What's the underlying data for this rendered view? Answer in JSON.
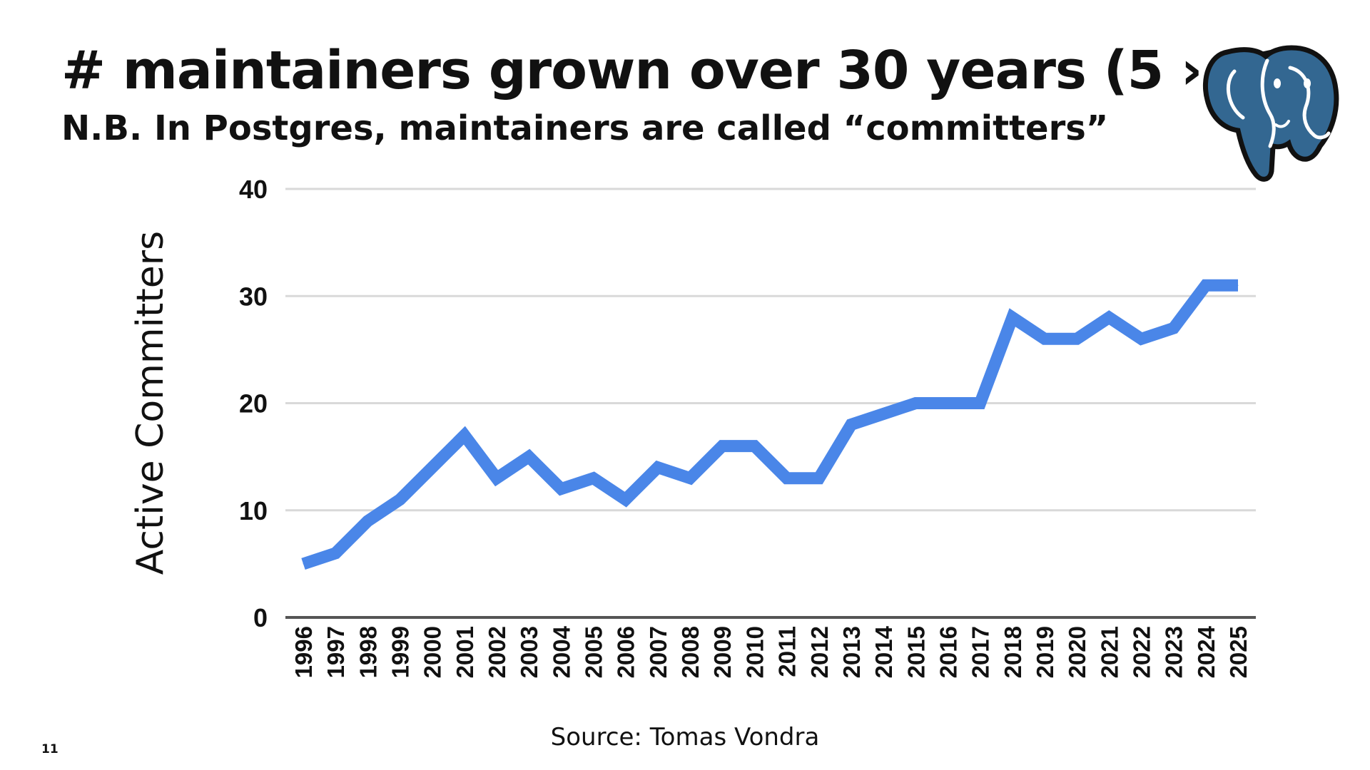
{
  "slide": {
    "title": "# maintainers grown over 30 years (5 › 31)",
    "subtitle": "N.B. In Postgres, maintainers are called “committers”",
    "source": "Source: Tomas Vondra",
    "page_number": "11"
  },
  "colors": {
    "line": "#4a86e8",
    "grid": "#d9d9d9",
    "axis": "#555555",
    "logo_blue": "#336791"
  },
  "chart_data": {
    "type": "line",
    "title": "",
    "xlabel": "",
    "ylabel": "Active Committers",
    "ylim": [
      0,
      40
    ],
    "yticks": [
      0,
      10,
      20,
      30,
      40
    ],
    "grid": true,
    "categories": [
      "1996",
      "1997",
      "1998",
      "1999",
      "2000",
      "2001",
      "2002",
      "2003",
      "2004",
      "2005",
      "2006",
      "2007",
      "2008",
      "2009",
      "2010",
      "2011",
      "2012",
      "2013",
      "2014",
      "2015",
      "2016",
      "2017",
      "2018",
      "2019",
      "2020",
      "2021",
      "2022",
      "2023",
      "2024",
      "2025"
    ],
    "series": [
      {
        "values": [
          5,
          6,
          9,
          11,
          14,
          17,
          13,
          15,
          12,
          13,
          11,
          14,
          13,
          16,
          16,
          13,
          13,
          18,
          19,
          20,
          20,
          20,
          28,
          26,
          26,
          28,
          26,
          27,
          31,
          31
        ]
      }
    ]
  }
}
